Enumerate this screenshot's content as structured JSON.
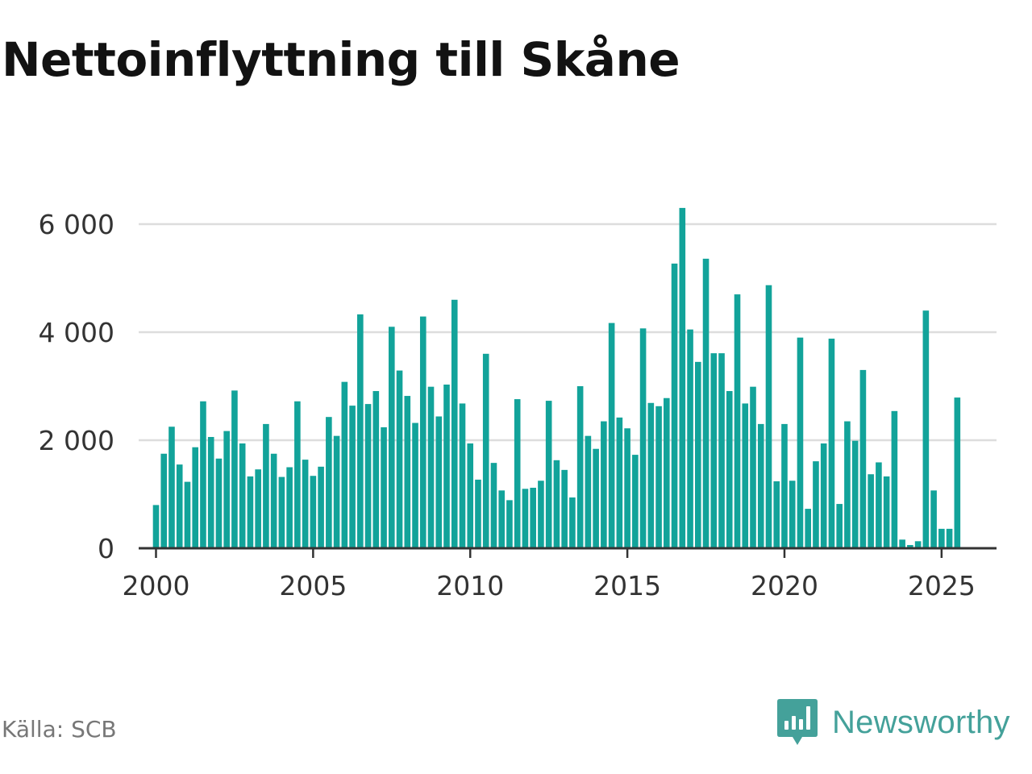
{
  "title": "Nettoinflyttning till Skåne",
  "source": "Källa: SCB",
  "brand": {
    "name": "Newsworthy",
    "icon": "newsworthy-logo-icon"
  },
  "colors": {
    "bar": "#12a39a",
    "grid": "#dddddd",
    "axis": "#333333",
    "brand": "#44a19a"
  },
  "chart_data": {
    "type": "bar",
    "title": "Nettoinflyttning till Skåne",
    "xlabel": "",
    "ylabel": "",
    "ylim": [
      0,
      6000
    ],
    "xlim": [
      1999.5,
      2026.8
    ],
    "grid": true,
    "y_ticks": [
      {
        "value": 0,
        "label": "0"
      },
      {
        "value": 2000,
        "label": "2 000"
      },
      {
        "value": 4000,
        "label": "4 000"
      },
      {
        "value": 6000,
        "label": "6 000"
      }
    ],
    "x_ticks": [
      {
        "value": 2000,
        "label": "2000"
      },
      {
        "value": 2005,
        "label": "2005"
      },
      {
        "value": 2010,
        "label": "2010"
      },
      {
        "value": 2015,
        "label": "2015"
      },
      {
        "value": 2020,
        "label": "2020"
      },
      {
        "value": 2025,
        "label": "2025"
      }
    ],
    "start_year": 2000,
    "periods_per_year": 4,
    "series": [
      {
        "name": "Nettoinflyttning",
        "values": [
          800,
          1750,
          2250,
          1550,
          1230,
          1870,
          2720,
          2060,
          1660,
          2170,
          2920,
          1940,
          1330,
          1460,
          2300,
          1750,
          1320,
          1500,
          2720,
          1640,
          1340,
          1510,
          2430,
          2080,
          3080,
          2640,
          4330,
          2670,
          2910,
          2240,
          4100,
          3290,
          2820,
          2320,
          4290,
          2990,
          2440,
          3030,
          4600,
          2680,
          1940,
          1270,
          3600,
          1580,
          1070,
          890,
          2760,
          1100,
          1120,
          1250,
          2730,
          1630,
          1450,
          940,
          3000,
          2080,
          1840,
          2350,
          4170,
          2420,
          2220,
          1730,
          4070,
          2690,
          2630,
          2780,
          5270,
          6300,
          4050,
          3450,
          5360,
          3610,
          3610,
          2910,
          4700,
          2680,
          2990,
          2300,
          4870,
          1240,
          2300,
          1250,
          3900,
          730,
          1610,
          1940,
          3880,
          820,
          2350,
          1990,
          3300,
          1370,
          1590,
          1330,
          2540,
          160,
          60,
          130,
          4400,
          1070,
          360,
          360,
          2790
        ]
      }
    ]
  }
}
